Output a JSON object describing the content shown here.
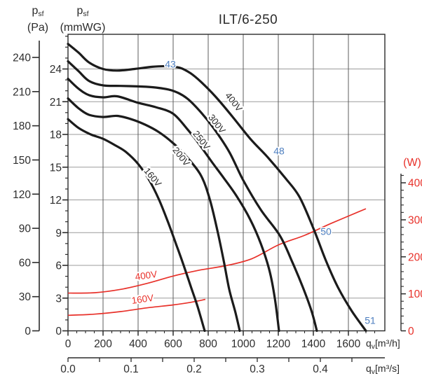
{
  "title": "ILT/6-250",
  "axis_headers": {
    "pa": {
      "symbol": "p",
      "sub": "sf",
      "unit": "(Pa)"
    },
    "mmwg": {
      "symbol": "p",
      "sub": "sf",
      "unit": "(mmWG)"
    },
    "watt": {
      "unit": "(W)"
    },
    "m3h": {
      "symbol": "q",
      "sub": "v",
      "unit": "[m³/h]"
    },
    "m3s": {
      "symbol": "q",
      "sub": "v",
      "unit": "[m³/s]"
    }
  },
  "colors": {
    "curve_black": "#1b1b1b",
    "power_red": "#e8312a",
    "noise_blue": "#4d7ebf",
    "text": "#2d2d2d",
    "grid_h": "#9b9b9b",
    "grid_v": "#5c5c5c",
    "frame": "#2b2b2b"
  },
  "chart_data": {
    "type": "line",
    "title": "ILT/6-250",
    "x_axis": {
      "label": "qv [m³/h]",
      "ticks": [
        0,
        200,
        400,
        600,
        800,
        1000,
        1200,
        1400,
        1600
      ],
      "minor_step": 50,
      "range": [
        0,
        1808
      ]
    },
    "x_axis_secondary": {
      "label": "qv [m³/s]",
      "tick_labels": [
        "0.0",
        "0.1",
        "0.2",
        "0.3",
        "0.4"
      ],
      "tick_values": [
        0.0,
        0.1,
        0.2,
        0.3,
        0.4
      ],
      "minor_step": 0.05,
      "units_per_m3h": 0.000277778
    },
    "y_axis_pa": {
      "label": "psf (Pa)",
      "ticks": [
        0,
        30,
        60,
        90,
        120,
        150,
        180,
        210,
        240
      ],
      "range": [
        0,
        260
      ]
    },
    "y_axis_mmwg": {
      "label": "psf (mmWG)",
      "ticks": [
        0,
        3,
        6,
        9,
        12,
        15,
        18,
        21,
        24
      ],
      "minor_step": 1,
      "range": [
        0,
        27.1
      ]
    },
    "y_axis_watt": {
      "label": "(W)",
      "ticks": [
        0,
        100,
        200,
        300,
        400
      ],
      "minor_step": 20,
      "range": [
        0,
        430
      ]
    },
    "grid": {
      "horizontal_every_mmwg": 3,
      "vertical_every_m3h": 200
    },
    "pressure_curves": [
      {
        "name": "400V",
        "units": "mmWG vs m3/h",
        "points": [
          [
            0,
            26.3
          ],
          [
            60,
            25.5
          ],
          [
            120,
            24.6
          ],
          [
            200,
            24.0
          ],
          [
            280,
            23.85
          ],
          [
            380,
            24.0
          ],
          [
            480,
            24.2
          ],
          [
            560,
            24.25
          ],
          [
            640,
            24.1
          ],
          [
            700,
            23.6
          ],
          [
            760,
            22.8
          ],
          [
            840,
            21.5
          ],
          [
            940,
            19.6
          ],
          [
            1040,
            17.6
          ],
          [
            1140,
            15.9
          ],
          [
            1240,
            14.0
          ],
          [
            1320,
            12.3
          ],
          [
            1400,
            9.4
          ],
          [
            1470,
            6.5
          ],
          [
            1540,
            4.0
          ],
          [
            1620,
            1.8
          ],
          [
            1700,
            0
          ]
        ],
        "label": {
          "text": "400V",
          "q": 932,
          "p": 20.8,
          "angle": 52
        }
      },
      {
        "name": "300V",
        "points": [
          [
            0,
            24.7
          ],
          [
            60,
            23.8
          ],
          [
            120,
            22.9
          ],
          [
            200,
            22.5
          ],
          [
            300,
            22.45
          ],
          [
            400,
            22.4
          ],
          [
            500,
            22.3
          ],
          [
            600,
            22.0
          ],
          [
            680,
            21.3
          ],
          [
            760,
            20.0
          ],
          [
            830,
            18.6
          ],
          [
            920,
            16.4
          ],
          [
            1000,
            13.8
          ],
          [
            1100,
            11.1
          ],
          [
            1210,
            8.7
          ],
          [
            1280,
            6.3
          ],
          [
            1340,
            4.0
          ],
          [
            1390,
            1.8
          ],
          [
            1420,
            0
          ]
        ],
        "label": {
          "text": "300V",
          "q": 836,
          "p": 18.8,
          "angle": 52
        }
      },
      {
        "name": "250V",
        "points": [
          [
            0,
            23.1
          ],
          [
            60,
            22.2
          ],
          [
            120,
            21.6
          ],
          [
            200,
            21.4
          ],
          [
            280,
            21.5
          ],
          [
            400,
            20.9
          ],
          [
            500,
            20.5
          ],
          [
            600,
            19.9
          ],
          [
            680,
            18.5
          ],
          [
            740,
            17.3
          ],
          [
            820,
            15.5
          ],
          [
            880,
            14.2
          ],
          [
            960,
            12.4
          ],
          [
            1040,
            10.2
          ],
          [
            1100,
            8.0
          ],
          [
            1150,
            5.5
          ],
          [
            1180,
            3.0
          ],
          [
            1204,
            0
          ]
        ],
        "label": {
          "text": "250V",
          "q": 748,
          "p": 17.3,
          "angle": 52
        }
      },
      {
        "name": "200V",
        "points": [
          [
            0,
            21.3
          ],
          [
            60,
            20.4
          ],
          [
            120,
            19.8
          ],
          [
            200,
            19.6
          ],
          [
            280,
            19.7
          ],
          [
            360,
            19.4
          ],
          [
            440,
            18.9
          ],
          [
            520,
            18.2
          ],
          [
            600,
            17.2
          ],
          [
            680,
            15.9
          ],
          [
            760,
            14.2
          ],
          [
            810,
            12.0
          ],
          [
            855,
            9.0
          ],
          [
            890,
            6.3
          ],
          [
            920,
            3.8
          ],
          [
            955,
            1.7
          ],
          [
            980,
            0
          ]
        ],
        "label": {
          "text": "200V",
          "q": 632,
          "p": 15.8,
          "angle": 52
        }
      },
      {
        "name": "160V",
        "points": [
          [
            0,
            19.4
          ],
          [
            60,
            18.6
          ],
          [
            130,
            18.0
          ],
          [
            200,
            17.6
          ],
          [
            270,
            17.0
          ],
          [
            330,
            16.4
          ],
          [
            400,
            15.3
          ],
          [
            464,
            13.8
          ],
          [
            520,
            12.0
          ],
          [
            570,
            10.0
          ],
          [
            620,
            7.8
          ],
          [
            660,
            6.0
          ],
          [
            700,
            4.1
          ],
          [
            740,
            2.2
          ],
          [
            780,
            0
          ]
        ],
        "label": {
          "text": "160V",
          "q": 470,
          "p": 13.9,
          "angle": 50
        }
      }
    ],
    "power_curves": [
      {
        "name": "400V",
        "units": "W vs m3/h",
        "points": [
          [
            0,
            102
          ],
          [
            150,
            103
          ],
          [
            300,
            112
          ],
          [
            450,
            128
          ],
          [
            600,
            148
          ],
          [
            750,
            164
          ],
          [
            900,
            176
          ],
          [
            1050,
            195
          ],
          [
            1200,
            232
          ],
          [
            1350,
            258
          ],
          [
            1500,
            290
          ],
          [
            1700,
            330
          ]
        ],
        "label": {
          "text": "400V",
          "q": 448,
          "w": 141,
          "angle": -8
        }
      },
      {
        "name": "160V",
        "points": [
          [
            0,
            42
          ],
          [
            150,
            45
          ],
          [
            300,
            52
          ],
          [
            450,
            62
          ],
          [
            600,
            70
          ],
          [
            700,
            77
          ],
          [
            784,
            85
          ]
        ],
        "label": {
          "text": "160V",
          "q": 428,
          "w": 77,
          "angle": -8
        }
      }
    ],
    "noise_labels": [
      {
        "text": "43",
        "q": 584,
        "p": 24.45
      },
      {
        "text": "48",
        "q": 1204,
        "p": 16.5
      },
      {
        "text": "50",
        "q": 1472,
        "p": 9.1
      },
      {
        "text": "51",
        "q": 1724,
        "p": 0.95
      }
    ]
  }
}
